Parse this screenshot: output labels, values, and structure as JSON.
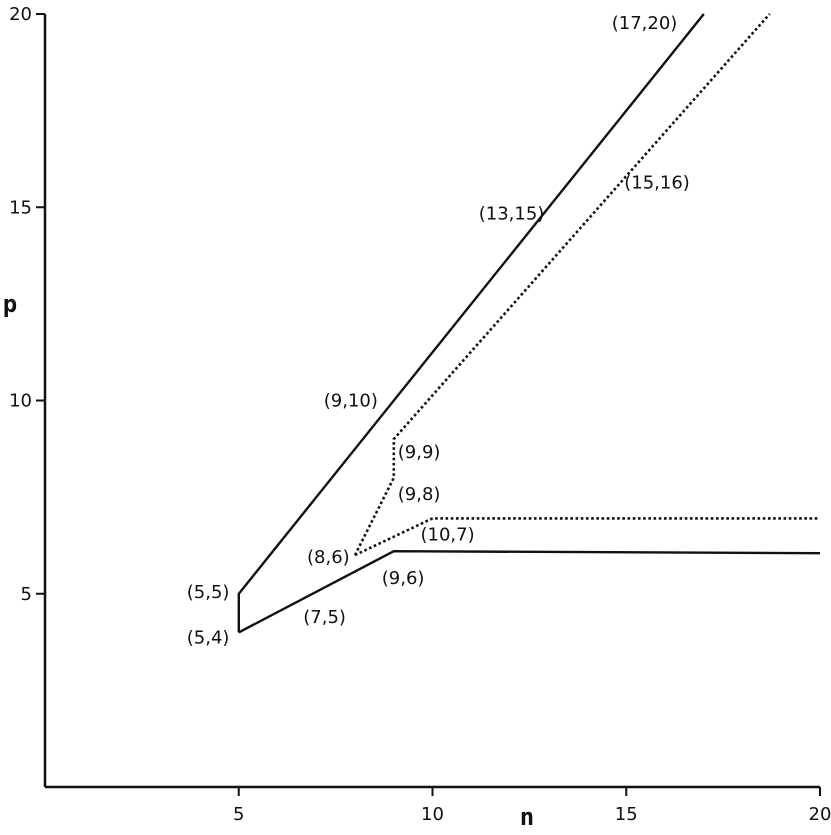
{
  "chart_data": {
    "type": "line",
    "title": "",
    "xlabel": "n",
    "ylabel": "p",
    "xlim": [
      0,
      20
    ],
    "ylim": [
      0,
      20
    ],
    "grid": false,
    "x_ticks": [
      5,
      10,
      15,
      20
    ],
    "y_ticks": [
      5,
      10,
      15,
      20
    ],
    "series": [
      {
        "style": "solid",
        "color": "#111111",
        "points": [
          [
            5,
            4
          ],
          [
            5,
            5
          ],
          [
            17,
            20
          ]
        ]
      },
      {
        "style": "solid",
        "color": "#111111",
        "points": [
          [
            5,
            4
          ],
          [
            9,
            6.1
          ],
          [
            20,
            6.05
          ]
        ]
      },
      {
        "style": "dotted",
        "color": "#111111",
        "points": [
          [
            8,
            6
          ],
          [
            9,
            8
          ],
          [
            9,
            9
          ],
          [
            18.7,
            20
          ]
        ]
      },
      {
        "style": "dotted",
        "color": "#111111",
        "points": [
          [
            8,
            6
          ],
          [
            10,
            6.95
          ],
          [
            20,
            6.95
          ]
        ]
      }
    ],
    "annotations": [
      {
        "text": "(17,20)",
        "x": 17,
        "y": 20
      },
      {
        "text": "(13,15)",
        "x": 13,
        "y": 15
      },
      {
        "text": "(15,16)",
        "x": 15,
        "y": 16
      },
      {
        "text": "(9,10)",
        "x": 9,
        "y": 10
      },
      {
        "text": "(9,9)",
        "x": 9,
        "y": 9
      },
      {
        "text": "(9,8)",
        "x": 9,
        "y": 8
      },
      {
        "text": "(8,6)",
        "x": 8,
        "y": 6
      },
      {
        "text": "(10,7)",
        "x": 10,
        "y": 7
      },
      {
        "text": "(9,6)",
        "x": 9,
        "y": 6
      },
      {
        "text": "(7,5)",
        "x": 7,
        "y": 5
      },
      {
        "text": "(5,5)",
        "x": 5,
        "y": 5
      },
      {
        "text": "(5,4)",
        "x": 5,
        "y": 4
      }
    ]
  }
}
